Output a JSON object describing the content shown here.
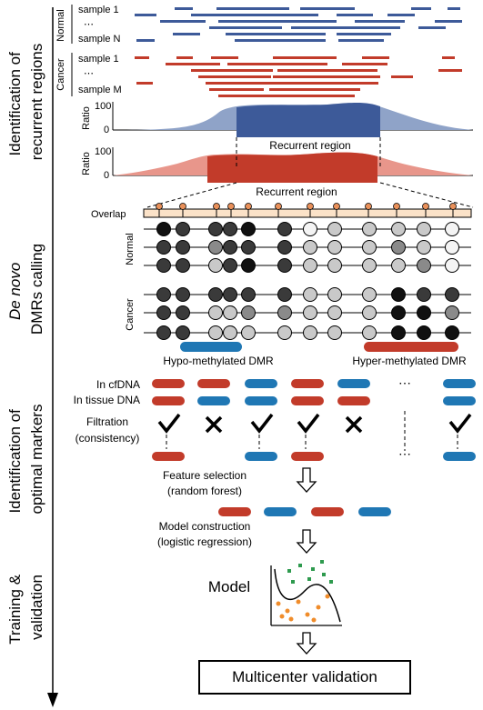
{
  "stages": [
    {
      "label": "Identification of recurrent regions",
      "lines": [
        "Identification of",
        "recurrent regions"
      ],
      "italic_first": false
    },
    {
      "label": "De novo DMRs calling",
      "lines": [
        "De novo",
        "DMRs calling"
      ],
      "italic_first": true
    },
    {
      "label": "Identification of optimal markers",
      "lines": [
        "Identification of",
        "optimal markers"
      ],
      "italic_first": false
    },
    {
      "label": "Training & validation",
      "lines": [
        "Training &",
        "validation"
      ],
      "italic_first": false
    }
  ],
  "recurrent": {
    "normal_label": "Normal",
    "cancer_label": "Cancer",
    "normal_sample_first": "sample 1",
    "normal_sample_last": "sample N",
    "cancer_sample_first": "sample 1",
    "cancer_sample_last": "sample M",
    "dots": "⋯",
    "ratio_label": "Ratio",
    "tick_100": "100",
    "tick_0": "0",
    "region_label": "Recurrent region",
    "colors": {
      "normal": "#3d5a99",
      "normal_light": "#8fa3c8",
      "cancer": "#c23b2a",
      "cancer_light": "#e8968b"
    }
  },
  "dmr": {
    "overlap_label": "Overlap",
    "normal_label": "Normal",
    "cancer_label": "Cancer",
    "hypo_label": "Hypo-methylated DMR",
    "hyper_label": "Hyper-methylated DMR"
  },
  "markers": {
    "cfdna_label": "In cfDNA",
    "tissue_label": "In tissue DNA",
    "filtration_label_1": "Filtration",
    "filtration_label_2": "(consistency)",
    "feature_label_1": "Feature selection",
    "feature_label_2": "(random forest)",
    "model_label_1": "Model construction",
    "model_label_2": "(logistic regression)",
    "colors": {
      "red": "#c23b2a",
      "blue": "#1f77b4"
    }
  },
  "training": {
    "model_label": "Model",
    "final_label": "Multicenter validation"
  }
}
